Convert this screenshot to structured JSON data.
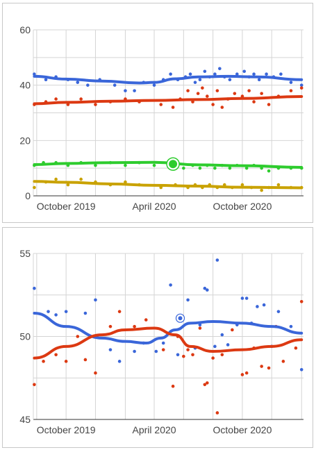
{
  "chart_data": [
    {
      "type": "scatter",
      "title": "",
      "xlabel": "",
      "ylabel": "",
      "x_ticks": [
        "October 2019",
        "April 2020",
        "October 2020"
      ],
      "x_tick_dates": [
        "2019-10-01",
        "2020-04-01",
        "2020-10-01"
      ],
      "xlim": [
        "2019-07-25",
        "2021-02-05"
      ],
      "ylim": [
        0,
        60
      ],
      "y_ticks": [
        "0",
        "20",
        "40",
        "60"
      ],
      "y_tick_values": [
        0,
        20,
        40,
        60
      ],
      "grid": true,
      "legend": "none",
      "series": [
        {
          "color": "#3a66d9",
          "trend": [
            [
              "2019-07-27",
              43.2
            ],
            [
              "2019-10-01",
              42.2
            ],
            [
              "2019-12-15",
              41.5
            ],
            [
              "2020-03-01",
              40.8
            ],
            [
              "2020-04-01",
              41.0
            ],
            [
              "2020-05-15",
              42.3
            ],
            [
              "2020-07-01",
              43.0
            ],
            [
              "2020-09-01",
              43.2
            ],
            [
              "2020-11-01",
              43.0
            ],
            [
              "2021-02-01",
              42.0
            ]
          ],
          "points": [
            [
              "2019-07-27",
              44
            ],
            [
              "2019-08-20",
              42
            ],
            [
              "2019-09-10",
              43
            ],
            [
              "2019-10-05",
              42
            ],
            [
              "2019-10-25",
              41
            ],
            [
              "2019-11-15",
              40
            ],
            [
              "2019-12-10",
              42
            ],
            [
              "2020-01-10",
              40
            ],
            [
              "2020-02-01",
              38
            ],
            [
              "2020-02-20",
              38
            ],
            [
              "2020-03-10",
              41
            ],
            [
              "2020-04-01",
              40
            ],
            [
              "2020-04-20",
              42
            ],
            [
              "2020-05-05",
              44
            ],
            [
              "2020-05-20",
              42
            ],
            [
              "2020-06-05",
              43
            ],
            [
              "2020-06-15",
              44
            ],
            [
              "2020-06-25",
              41
            ],
            [
              "2020-07-05",
              42
            ],
            [
              "2020-07-15",
              45
            ],
            [
              "2020-07-25",
              43
            ],
            [
              "2020-08-05",
              44
            ],
            [
              "2020-08-15",
              46
            ],
            [
              "2020-08-25",
              43
            ],
            [
              "2020-09-05",
              42
            ],
            [
              "2020-09-20",
              44
            ],
            [
              "2020-10-05",
              45
            ],
            [
              "2020-10-15",
              43
            ],
            [
              "2020-10-25",
              44
            ],
            [
              "2020-11-05",
              42
            ],
            [
              "2020-11-20",
              44
            ],
            [
              "2020-12-05",
              43
            ],
            [
              "2020-12-20",
              44
            ],
            [
              "2021-01-10",
              41
            ],
            [
              "2021-02-01",
              40
            ]
          ]
        },
        {
          "color": "#dc3912",
          "trend": [
            [
              "2019-07-27",
              33.3
            ],
            [
              "2019-10-01",
              33.8
            ],
            [
              "2020-01-01",
              34.2
            ],
            [
              "2020-04-01",
              34.5
            ],
            [
              "2020-07-01",
              34.8
            ],
            [
              "2020-10-01",
              35.2
            ],
            [
              "2021-02-01",
              35.9
            ]
          ],
          "points": [
            [
              "2019-07-27",
              33
            ],
            [
              "2019-08-20",
              34
            ],
            [
              "2019-09-10",
              35
            ],
            [
              "2019-10-05",
              33
            ],
            [
              "2019-11-01",
              35
            ],
            [
              "2019-12-01",
              33
            ],
            [
              "2020-01-01",
              34
            ],
            [
              "2020-02-01",
              35
            ],
            [
              "2020-03-01",
              34
            ],
            [
              "2020-04-15",
              33
            ],
            [
              "2020-05-10",
              32
            ],
            [
              "2020-05-25",
              35
            ],
            [
              "2020-06-10",
              38
            ],
            [
              "2020-06-20",
              34
            ],
            [
              "2020-07-01",
              37
            ],
            [
              "2020-07-10",
              39
            ],
            [
              "2020-07-20",
              36
            ],
            [
              "2020-08-01",
              33
            ],
            [
              "2020-08-10",
              38
            ],
            [
              "2020-08-20",
              32
            ],
            [
              "2020-09-01",
              35
            ],
            [
              "2020-09-15",
              37
            ],
            [
              "2020-10-01",
              36
            ],
            [
              "2020-10-15",
              38
            ],
            [
              "2020-10-25",
              34
            ],
            [
              "2020-11-10",
              37
            ],
            [
              "2020-11-25",
              33
            ],
            [
              "2020-12-15",
              36
            ],
            [
              "2021-01-10",
              38
            ],
            [
              "2021-02-01",
              39
            ]
          ]
        },
        {
          "color": "#2ecc2e",
          "trend": [
            [
              "2019-07-27",
              11.3
            ],
            [
              "2019-10-01",
              11.7
            ],
            [
              "2020-01-01",
              12.0
            ],
            [
              "2020-04-01",
              12.1
            ],
            [
              "2020-07-01",
              11.2
            ],
            [
              "2020-10-01",
              10.9
            ],
            [
              "2021-02-01",
              10.3
            ]
          ],
          "points": [
            [
              "2019-07-27",
              11
            ],
            [
              "2019-08-15",
              12
            ],
            [
              "2019-09-10",
              12
            ],
            [
              "2019-10-05",
              11
            ],
            [
              "2019-11-01",
              12
            ],
            [
              "2019-12-01",
              11
            ],
            [
              "2020-01-01",
              12
            ],
            [
              "2020-02-01",
              11
            ],
            [
              "2020-03-01",
              12
            ],
            [
              "2020-04-01",
              11
            ],
            [
              "2020-05-10",
              11
            ],
            [
              "2020-06-01",
              10
            ],
            [
              "2020-06-20",
              11
            ],
            [
              "2020-07-05",
              10
            ],
            [
              "2020-07-20",
              11
            ],
            [
              "2020-08-05",
              10
            ],
            [
              "2020-08-20",
              11
            ],
            [
              "2020-09-05",
              10
            ],
            [
              "2020-09-20",
              11
            ],
            [
              "2020-10-10",
              10
            ],
            [
              "2020-10-25",
              11
            ],
            [
              "2020-11-10",
              10
            ],
            [
              "2020-11-25",
              9
            ],
            [
              "2020-12-15",
              10
            ],
            [
              "2021-01-10",
              10
            ],
            [
              "2021-02-01",
              10
            ]
          ],
          "highlight": [
            "2020-05-10",
            11.5
          ]
        },
        {
          "color": "#c9a200",
          "trend": [
            [
              "2019-07-27",
              5.2
            ],
            [
              "2019-10-01",
              4.9
            ],
            [
              "2020-01-01",
              4.3
            ],
            [
              "2020-04-01",
              3.8
            ],
            [
              "2020-07-01",
              3.5
            ],
            [
              "2020-10-01",
              3.1
            ],
            [
              "2021-02-01",
              2.9
            ]
          ],
          "points": [
            [
              "2019-07-27",
              3
            ],
            [
              "2019-08-20",
              5
            ],
            [
              "2019-09-10",
              6
            ],
            [
              "2019-10-05",
              4
            ],
            [
              "2019-11-01",
              6
            ],
            [
              "2019-12-01",
              5
            ],
            [
              "2020-01-01",
              4
            ],
            [
              "2020-02-01",
              5
            ],
            [
              "2020-03-01",
              4
            ],
            [
              "2020-04-15",
              3
            ],
            [
              "2020-05-15",
              4
            ],
            [
              "2020-06-10",
              3
            ],
            [
              "2020-06-25",
              4
            ],
            [
              "2020-07-10",
              3
            ],
            [
              "2020-07-25",
              4
            ],
            [
              "2020-08-10",
              3
            ],
            [
              "2020-08-25",
              4
            ],
            [
              "2020-09-10",
              3
            ],
            [
              "2020-10-01",
              4
            ],
            [
              "2020-10-20",
              3
            ],
            [
              "2020-11-10",
              2
            ],
            [
              "2020-11-25",
              3
            ],
            [
              "2020-12-15",
              4
            ],
            [
              "2021-01-10",
              3
            ],
            [
              "2021-02-01",
              3
            ]
          ]
        }
      ]
    },
    {
      "type": "scatter",
      "title": "",
      "xlabel": "",
      "ylabel": "",
      "x_ticks": [
        "October 2019",
        "April 2020",
        "October 2020"
      ],
      "x_tick_dates": [
        "2019-10-01",
        "2020-04-01",
        "2020-10-01"
      ],
      "xlim": [
        "2019-07-25",
        "2021-02-05"
      ],
      "ylim": [
        45,
        55
      ],
      "y_ticks": [
        "45",
        "50",
        "55"
      ],
      "y_tick_values": [
        45,
        50,
        55
      ],
      "grid": true,
      "legend": "none",
      "series": [
        {
          "color": "#3a66d9",
          "trend": [
            [
              "2019-07-27",
              51.4
            ],
            [
              "2019-10-01",
              50.6
            ],
            [
              "2019-12-15",
              49.9
            ],
            [
              "2020-02-01",
              49.7
            ],
            [
              "2020-03-15",
              49.6
            ],
            [
              "2020-04-15",
              49.9
            ],
            [
              "2020-05-15",
              50.4
            ],
            [
              "2020-06-15",
              50.8
            ],
            [
              "2020-08-01",
              50.9
            ],
            [
              "2020-10-01",
              50.8
            ],
            [
              "2020-12-01",
              50.6
            ],
            [
              "2021-02-01",
              50.2
            ]
          ],
          "points": [
            [
              "2019-07-27",
              52.9
            ],
            [
              "2019-08-25",
              51.5
            ],
            [
              "2019-09-10",
              51.3
            ],
            [
              "2019-10-01",
              51.5
            ],
            [
              "2019-11-10",
              51.4
            ],
            [
              "2019-12-01",
              52.2
            ],
            [
              "2020-01-01",
              49.2
            ],
            [
              "2020-01-20",
              48.5
            ],
            [
              "2020-02-20",
              49.1
            ],
            [
              "2020-03-10",
              49.6
            ],
            [
              "2020-04-05",
              49.1
            ],
            [
              "2020-04-20",
              49.6
            ],
            [
              "2020-05-05",
              53.1
            ],
            [
              "2020-05-20",
              48.9
            ],
            [
              "2020-06-10",
              52.2
            ],
            [
              "2020-06-25",
              49.3
            ],
            [
              "2020-07-05",
              50.7
            ],
            [
              "2020-07-15",
              52.9
            ],
            [
              "2020-07-20",
              52.8
            ],
            [
              "2020-08-05",
              49.4
            ],
            [
              "2020-08-10",
              54.6
            ],
            [
              "2020-08-20",
              50.1
            ],
            [
              "2020-09-01",
              49.5
            ],
            [
              "2020-09-20",
              50.7
            ],
            [
              "2020-10-01",
              52.3
            ],
            [
              "2020-10-10",
              52.3
            ],
            [
              "2020-10-20",
              50.8
            ],
            [
              "2020-11-01",
              51.8
            ],
            [
              "2020-11-15",
              51.9
            ],
            [
              "2020-12-01",
              49.4
            ],
            [
              "2020-12-15",
              51.5
            ],
            [
              "2021-01-10",
              50.6
            ],
            [
              "2021-02-01",
              48.0
            ]
          ],
          "highlight": [
            "2020-05-25",
            51.1
          ]
        },
        {
          "color": "#dc3912",
          "trend": [
            [
              "2019-07-27",
              48.7
            ],
            [
              "2019-10-01",
              49.4
            ],
            [
              "2019-12-15",
              50.1
            ],
            [
              "2020-02-01",
              50.4
            ],
            [
              "2020-04-01",
              50.5
            ],
            [
              "2020-05-15",
              50.1
            ],
            [
              "2020-06-15",
              49.4
            ],
            [
              "2020-08-01",
              49.1
            ],
            [
              "2020-10-01",
              49.2
            ],
            [
              "2020-12-01",
              49.4
            ],
            [
              "2021-02-01",
              49.8
            ]
          ],
          "points": [
            [
              "2019-07-27",
              47.1
            ],
            [
              "2019-08-15",
              48.5
            ],
            [
              "2019-09-10",
              48.9
            ],
            [
              "2019-10-01",
              48.5
            ],
            [
              "2019-10-25",
              50.0
            ],
            [
              "2019-11-10",
              48.6
            ],
            [
              "2019-12-01",
              47.8
            ],
            [
              "2020-01-01",
              50.6
            ],
            [
              "2020-01-20",
              51.5
            ],
            [
              "2020-02-20",
              50.6
            ],
            [
              "2020-03-15",
              51.0
            ],
            [
              "2020-04-20",
              49.2
            ],
            [
              "2020-05-10",
              47.0
            ],
            [
              "2020-05-20",
              50.0
            ],
            [
              "2020-06-01",
              48.8
            ],
            [
              "2020-06-10",
              49.2
            ],
            [
              "2020-06-20",
              48.9
            ],
            [
              "2020-07-05",
              50.5
            ],
            [
              "2020-07-15",
              47.1
            ],
            [
              "2020-07-20",
              47.2
            ],
            [
              "2020-08-01",
              48.7
            ],
            [
              "2020-08-10",
              45.4
            ],
            [
              "2020-08-20",
              48.9
            ],
            [
              "2020-09-10",
              50.4
            ],
            [
              "2020-10-01",
              47.7
            ],
            [
              "2020-10-10",
              47.8
            ],
            [
              "2020-10-25",
              49.3
            ],
            [
              "2020-11-10",
              48.2
            ],
            [
              "2020-11-25",
              48.1
            ],
            [
              "2020-12-10",
              50.6
            ],
            [
              "2020-12-25",
              48.5
            ],
            [
              "2021-01-20",
              49.3
            ],
            [
              "2021-02-01",
              52.1
            ]
          ]
        }
      ]
    }
  ]
}
